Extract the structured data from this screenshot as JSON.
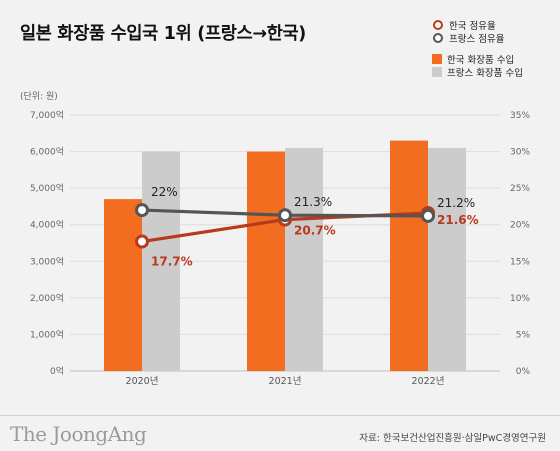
{
  "title": "일본 화장품 수입국 1위 (프랑스→한국)",
  "legend": {
    "korea_share": "한국 점유율",
    "france_share": "프랑스 점유율",
    "korea_import": "한국 화장품 수입",
    "france_import": "프랑스 화장품 수입"
  },
  "unit_label": "(단위: 원)",
  "brand": "The JoongAng",
  "source": "자료: 한국보건산업진흥원·삼일PwC경영연구원",
  "colors": {
    "korea_bar": "#f26d1f",
    "france_bar": "#cccccc",
    "korea_line": "#b73a1e",
    "france_line": "#555555"
  },
  "chart_data": {
    "type": "bar",
    "categories": [
      "2020년",
      "2021년",
      "2022년"
    ],
    "series": [
      {
        "name": "한국 화장품 수입",
        "type": "bar",
        "axis": "left",
        "values": [
          4700,
          6000,
          6300
        ]
      },
      {
        "name": "프랑스 화장품 수입",
        "type": "bar",
        "axis": "left",
        "values": [
          6000,
          6100,
          6100
        ]
      },
      {
        "name": "한국 점유율",
        "type": "line",
        "axis": "right",
        "values": [
          17.7,
          20.7,
          21.6
        ],
        "labels": [
          "17.7%",
          "20.7%",
          "21.6%"
        ]
      },
      {
        "name": "프랑스 점유율",
        "type": "line",
        "axis": "right",
        "values": [
          22,
          21.3,
          21.2
        ],
        "labels": [
          "22%",
          "21.3%",
          "21.2%"
        ]
      }
    ],
    "left_ticks": [
      "0억",
      "1,000억",
      "2,000억",
      "3,000억",
      "4,000억",
      "5,000억",
      "6,000억",
      "7,000억"
    ],
    "right_ticks": [
      "0%",
      "5%",
      "10%",
      "15%",
      "20%",
      "25%",
      "30%",
      "35%"
    ],
    "ylim_left": [
      0,
      7000
    ],
    "ylim_right": [
      0,
      35
    ],
    "grid": true
  }
}
